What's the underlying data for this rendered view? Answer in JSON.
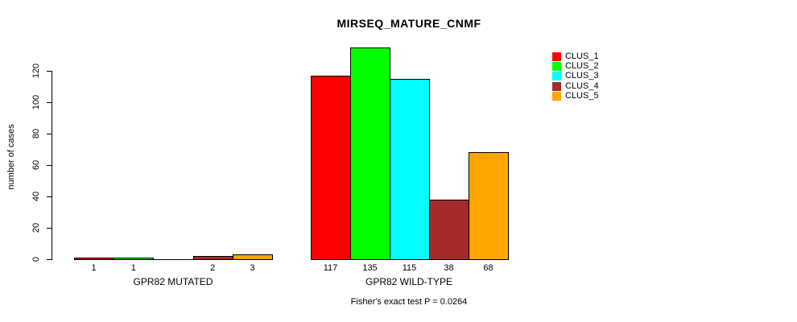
{
  "title": "MIRSEQ_MATURE_CNMF",
  "footer": "Fisher's exact test P = 0.0264",
  "chart_data": {
    "type": "bar",
    "title": "MIRSEQ_MATURE_CNMF",
    "ylabel": "number of cases",
    "xlabel": "",
    "ylim": [
      0,
      135
    ],
    "yticks": [
      0,
      20,
      40,
      60,
      80,
      100,
      120
    ],
    "grid": false,
    "legend_position": "top-right",
    "categories": [
      "GPR82 MUTATED",
      "GPR82 WILD-TYPE"
    ],
    "series": [
      {
        "name": "CLUS_1",
        "color": "#ff0000",
        "values": [
          1,
          117
        ]
      },
      {
        "name": "CLUS_2",
        "color": "#00ff00",
        "values": [
          1,
          135
        ]
      },
      {
        "name": "CLUS_3",
        "color": "#00ffff",
        "values": [
          0,
          115
        ]
      },
      {
        "name": "CLUS_4",
        "color": "#a52a2a",
        "values": [
          2,
          38
        ]
      },
      {
        "name": "CLUS_5",
        "color": "#ffa500",
        "values": [
          3,
          68
        ]
      }
    ],
    "bar_value_labels": [
      [
        "1",
        "1",
        "",
        "2",
        "3"
      ],
      [
        "117",
        "135",
        "115",
        "38",
        "68"
      ]
    ],
    "annotation": "Fisher's exact test P = 0.0264"
  }
}
